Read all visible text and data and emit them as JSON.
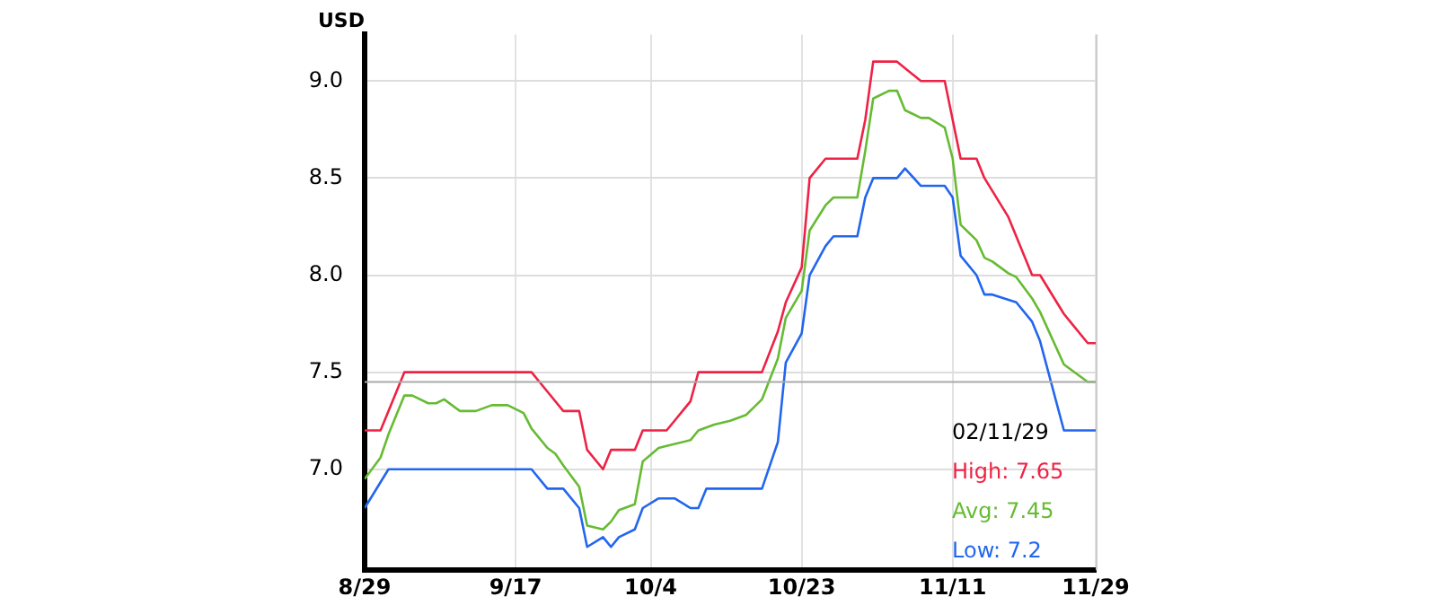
{
  "chart_data": {
    "type": "line",
    "ylabel": "USD",
    "xlim": [
      "--08-29",
      "--11-29"
    ],
    "xticks": [
      {
        "value": "--08-29",
        "label": "8/29"
      },
      {
        "value": "--09-17",
        "label": "9/17"
      },
      {
        "value": "--10-04",
        "label": "10/4"
      },
      {
        "value": "--10-23",
        "label": "10/23"
      },
      {
        "value": "--11-11",
        "label": "11/11"
      },
      {
        "value": "--11-29",
        "label": "11/29"
      }
    ],
    "ylim": [
      6.48,
      9.24
    ],
    "yticks": [
      {
        "value": 7,
        "label": "7.0"
      },
      7.5,
      {
        "value": 8,
        "label": "8.0"
      },
      8.5,
      {
        "value": 9,
        "label": "9.0"
      }
    ],
    "grid": true,
    "marker": "none",
    "line_style": "solid",
    "ref_lines": [
      {
        "axis": "y",
        "value": 7.45,
        "color": "#aaaaaa"
      }
    ],
    "annotations": [
      "02/11/29",
      "High: 7.65",
      "Avg: 7.45",
      "Low: 7.2"
    ],
    "series": [
      {
        "color": "#ee2244",
        "x": [
          "--08-29",
          "--08-31",
          "--09-01",
          "--09-03",
          "--09-19",
          "--09-21",
          "--09-23",
          "--09-25",
          "--09-26",
          "--09-28",
          "--09-29",
          "--10-02",
          "--10-03",
          "--10-06",
          "--10-07",
          "--10-09",
          "--10-10",
          "--10-18",
          "--10-20",
          "--10-21",
          "--10-23",
          "--10-24",
          "--10-26",
          "--10-30",
          "--10-31",
          "--11-01",
          "--11-04",
          "--11-07",
          "--11-10",
          "--11-11",
          "--11-12",
          "--11-14",
          "--11-15",
          "--11-18",
          "--11-21",
          "--11-22",
          "--11-25",
          "--11-26",
          "--11-28",
          "--11-29"
        ],
        "values": [
          7.2,
          7.2,
          7.3,
          7.5,
          7.5,
          7.4,
          7.3,
          7.3,
          7.1,
          7.0,
          7.1,
          7.1,
          7.2,
          7.2,
          7.25,
          7.35,
          7.5,
          7.5,
          7.71,
          7.86,
          8.04,
          8.5,
          8.6,
          8.6,
          8.8,
          9.1,
          9.1,
          9.0,
          9.0,
          8.8,
          8.6,
          8.6,
          8.5,
          8.3,
          8.0,
          8.0,
          7.8,
          7.75,
          7.65,
          7.65
        ]
      },
      {
        "color": "#66bb33",
        "x": [
          "--08-29",
          "--08-31",
          "--09-01",
          "--09-03",
          "--09-04",
          "--09-06",
          "--09-07",
          "--09-08",
          "--09-10",
          "--09-12",
          "--09-14",
          "--09-16",
          "--09-18",
          "--09-19",
          "--09-21",
          "--09-22",
          "--09-23",
          "--09-25",
          "--09-26",
          "--09-28",
          "--09-29",
          "--09-30",
          "--10-02",
          "--10-03",
          "--10-05",
          "--10-06",
          "--10-09",
          "--10-10",
          "--10-12",
          "--10-14",
          "--10-16",
          "--10-17",
          "--10-18",
          "--10-20",
          "--10-21",
          "--10-23",
          "--10-24",
          "--10-26",
          "--10-27",
          "--10-30",
          "--10-31",
          "--11-01",
          "--11-03",
          "--11-04",
          "--11-05",
          "--11-07",
          "--11-08",
          "--11-10",
          "--11-11",
          "--11-12",
          "--11-14",
          "--11-15",
          "--11-16",
          "--11-18",
          "--11-19",
          "--11-21",
          "--11-22",
          "--11-25",
          "--11-26",
          "--11-28",
          "--11-29"
        ],
        "values": [
          6.95,
          7.06,
          7.18,
          7.38,
          7.38,
          7.34,
          7.34,
          7.36,
          7.3,
          7.3,
          7.33,
          7.33,
          7.29,
          7.21,
          7.11,
          7.08,
          7.02,
          6.91,
          6.71,
          6.69,
          6.73,
          6.79,
          6.82,
          7.04,
          7.11,
          7.12,
          7.15,
          7.2,
          7.23,
          7.25,
          7.28,
          7.32,
          7.36,
          7.57,
          7.78,
          7.92,
          8.23,
          8.36,
          8.4,
          8.4,
          8.64,
          8.91,
          8.95,
          8.95,
          8.85,
          8.81,
          8.81,
          8.76,
          8.6,
          8.26,
          8.18,
          8.09,
          8.07,
          8.01,
          7.99,
          7.88,
          7.81,
          7.54,
          7.51,
          7.45,
          7.45
        ]
      },
      {
        "color": "#2266ee",
        "x": [
          "--08-29",
          "--09-01",
          "--09-19",
          "--09-21",
          "--09-23",
          "--09-25",
          "--09-26",
          "--09-28",
          "--09-29",
          "--09-30",
          "--10-02",
          "--10-03",
          "--10-05",
          "--10-07",
          "--10-09",
          "--10-10",
          "--10-11",
          "--10-18",
          "--10-20",
          "--10-21",
          "--10-23",
          "--10-24",
          "--10-26",
          "--10-27",
          "--10-30",
          "--10-31",
          "--11-01",
          "--11-04",
          "--11-05",
          "--11-07",
          "--11-10",
          "--11-11",
          "--11-12",
          "--11-14",
          "--11-15",
          "--11-16",
          "--11-19",
          "--11-21",
          "--11-22",
          "--11-25",
          "--11-29"
        ],
        "values": [
          6.8,
          7.0,
          7.0,
          6.9,
          6.9,
          6.8,
          6.6,
          6.65,
          6.6,
          6.65,
          6.69,
          6.8,
          6.85,
          6.85,
          6.8,
          6.8,
          6.9,
          6.9,
          7.14,
          7.55,
          7.7,
          8.0,
          8.15,
          8.2,
          8.2,
          8.4,
          8.5,
          8.5,
          8.55,
          8.46,
          8.46,
          8.4,
          8.1,
          8.0,
          7.9,
          7.9,
          7.86,
          7.76,
          7.66,
          7.2,
          7.2
        ]
      }
    ]
  }
}
